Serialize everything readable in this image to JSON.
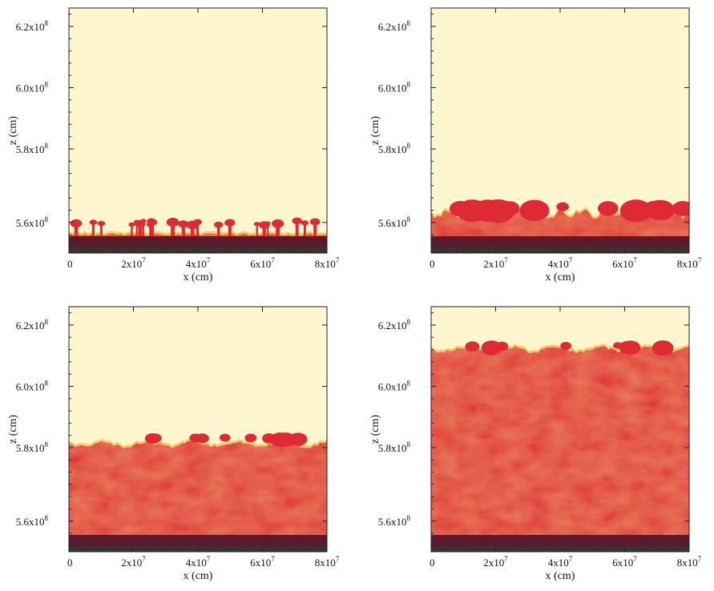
{
  "chart_data": [
    {
      "type": "heatmap",
      "panel": "top-left",
      "xlabel": "x (cm)",
      "ylabel": "z (cm)",
      "xlim": [
        0,
        80000000
      ],
      "ylim": [
        546000000,
        626000000
      ],
      "x_ticks": [
        0,
        20000000,
        40000000,
        60000000,
        80000000
      ],
      "x_tick_labels": [
        {
          "m": "0",
          "e": ""
        },
        {
          "m": "2x10",
          "e": "7"
        },
        {
          "m": "4x10",
          "e": "7"
        },
        {
          "m": "6x10",
          "e": "7"
        },
        {
          "m": "8x10",
          "e": "7"
        }
      ],
      "y_ticks": [
        556000000,
        580000000,
        600000000,
        620000000
      ],
      "y_tick_labels": [
        {
          "m": "5.6x10",
          "e": "8"
        },
        {
          "m": "5.8x10",
          "e": "8"
        },
        {
          "m": "6.0x10",
          "e": "8"
        },
        {
          "m": "6.2x10",
          "e": "8"
        }
      ],
      "mixed_layer_top": 552000000,
      "plume_top": 555000000,
      "roughness": "plumes",
      "grid": false,
      "legend": "none"
    },
    {
      "type": "heatmap",
      "panel": "top-right",
      "xlabel": "x (cm)",
      "ylabel": "z (cm)",
      "xlim": [
        0,
        80000000
      ],
      "ylim": [
        546000000,
        626000000
      ],
      "x_ticks": [
        0,
        20000000,
        40000000,
        60000000,
        80000000
      ],
      "x_tick_labels": [
        {
          "m": "0",
          "e": ""
        },
        {
          "m": "2x10",
          "e": "7"
        },
        {
          "m": "4x10",
          "e": "7"
        },
        {
          "m": "6x10",
          "e": "7"
        },
        {
          "m": "8x10",
          "e": "7"
        }
      ],
      "y_ticks": [
        556000000,
        580000000,
        600000000,
        620000000
      ],
      "y_tick_labels": [
        {
          "m": "5.6x10",
          "e": "8"
        },
        {
          "m": "5.8x10",
          "e": "8"
        },
        {
          "m": "6.0x10",
          "e": "8"
        },
        {
          "m": "6.2x10",
          "e": "8"
        }
      ],
      "mixed_layer_top": 559000000,
      "plume_top": 562000000,
      "roughness": "bumpy",
      "grid": false,
      "legend": "none"
    },
    {
      "type": "heatmap",
      "panel": "bottom-left",
      "xlabel": "x (cm)",
      "ylabel": "z (cm)",
      "xlim": [
        0,
        80000000
      ],
      "ylim": [
        546000000,
        626000000
      ],
      "x_ticks": [
        0,
        20000000,
        40000000,
        60000000,
        80000000
      ],
      "x_tick_labels": [
        {
          "m": "0",
          "e": ""
        },
        {
          "m": "2x10",
          "e": "7"
        },
        {
          "m": "4x10",
          "e": "7"
        },
        {
          "m": "6x10",
          "e": "7"
        },
        {
          "m": "8x10",
          "e": "7"
        }
      ],
      "y_ticks": [
        556000000,
        580000000,
        600000000,
        620000000
      ],
      "y_tick_labels": [
        {
          "m": "5.6x10",
          "e": "8"
        },
        {
          "m": "5.8x10",
          "e": "8"
        },
        {
          "m": "6.0x10",
          "e": "8"
        },
        {
          "m": "6.2x10",
          "e": "8"
        }
      ],
      "mixed_layer_top": 581000000,
      "plume_top": 584000000,
      "roughness": "wavy",
      "grid": false,
      "legend": "none"
    },
    {
      "type": "heatmap",
      "panel": "bottom-right",
      "xlabel": "x (cm)",
      "ylabel": "z (cm)",
      "xlim": [
        0,
        80000000
      ],
      "ylim": [
        546000000,
        626000000
      ],
      "x_ticks": [
        0,
        20000000,
        40000000,
        60000000,
        80000000
      ],
      "x_tick_labels": [
        {
          "m": "0",
          "e": ""
        },
        {
          "m": "2x10",
          "e": "7"
        },
        {
          "m": "4x10",
          "e": "7"
        },
        {
          "m": "6x10",
          "e": "7"
        },
        {
          "m": "8x10",
          "e": "7"
        }
      ],
      "y_ticks": [
        556000000,
        580000000,
        600000000,
        620000000
      ],
      "y_tick_labels": [
        {
          "m": "5.6x10",
          "e": "8"
        },
        {
          "m": "5.8x10",
          "e": "8"
        },
        {
          "m": "6.0x10",
          "e": "8"
        },
        {
          "m": "6.2x10",
          "e": "8"
        }
      ],
      "mixed_layer_top": 612000000,
      "plume_top": 614000000,
      "roughness": "wavy",
      "grid": false,
      "legend": "none"
    }
  ],
  "colors": {
    "background_fluid": "#fdf6cf",
    "mixed_fluid": "#df2a36",
    "front_highlight": "#f6b93b",
    "base_dark": "#5a1a2a",
    "bottom_band": "#383234",
    "axis": "#222222"
  }
}
